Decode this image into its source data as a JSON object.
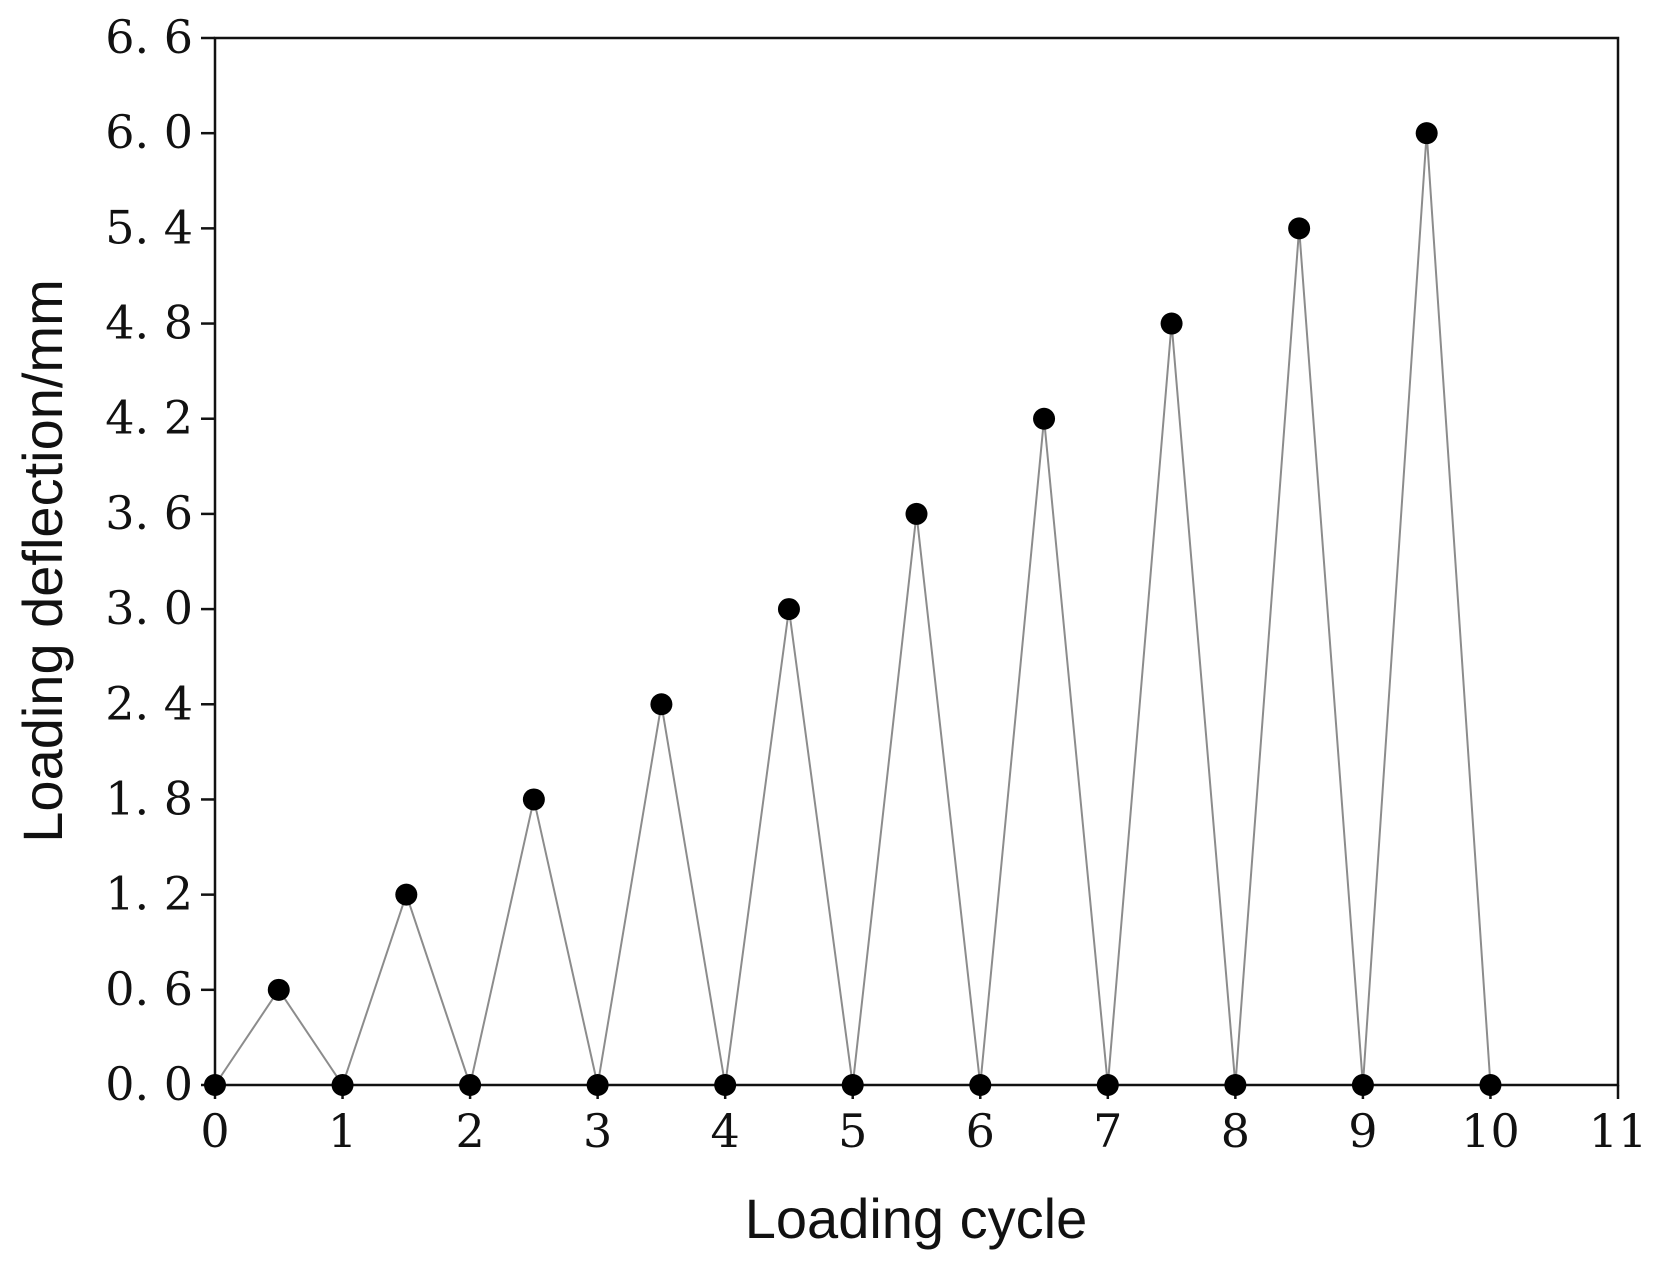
{
  "chart_data": {
    "type": "line",
    "title": "",
    "xlabel": "Loading cycle",
    "ylabel": "Loading deflection/mm",
    "xlim": [
      0,
      11
    ],
    "ylim": [
      0,
      6.6
    ],
    "x_ticks": [
      0,
      1,
      2,
      3,
      4,
      5,
      6,
      7,
      8,
      9,
      10,
      11
    ],
    "x_tick_labels": [
      "0",
      "1",
      "2",
      "3",
      "4",
      "5",
      "6",
      "7",
      "8",
      "9",
      "10",
      "11"
    ],
    "y_ticks": [
      0,
      0.6,
      1.2,
      1.8,
      2.4,
      3.0,
      3.6,
      4.2,
      4.8,
      5.4,
      6.0,
      6.6
    ],
    "y_tick_labels": [
      "0. 0",
      "0. 6",
      "1. 2",
      "1. 8",
      "2. 4",
      "3. 0",
      "3. 6",
      "4. 2",
      "4. 8",
      "5. 4",
      "6. 0",
      "6. 6"
    ],
    "grid": false,
    "legend": "none",
    "series": [
      {
        "line_color": "#8c8c8c",
        "marker_color": "#000000",
        "marker": "circle",
        "x": [
          0,
          0.5,
          1,
          1.5,
          2,
          2.5,
          3,
          3.5,
          4,
          4.5,
          5,
          5.5,
          6,
          6.5,
          7,
          7.5,
          8,
          8.5,
          9,
          9.5,
          10
        ],
        "y": [
          0,
          0.6,
          0,
          1.2,
          0,
          1.8,
          0,
          2.4,
          0,
          3.0,
          0,
          3.6,
          0,
          4.2,
          0,
          4.8,
          0,
          5.4,
          0,
          6.0,
          0
        ]
      }
    ]
  }
}
